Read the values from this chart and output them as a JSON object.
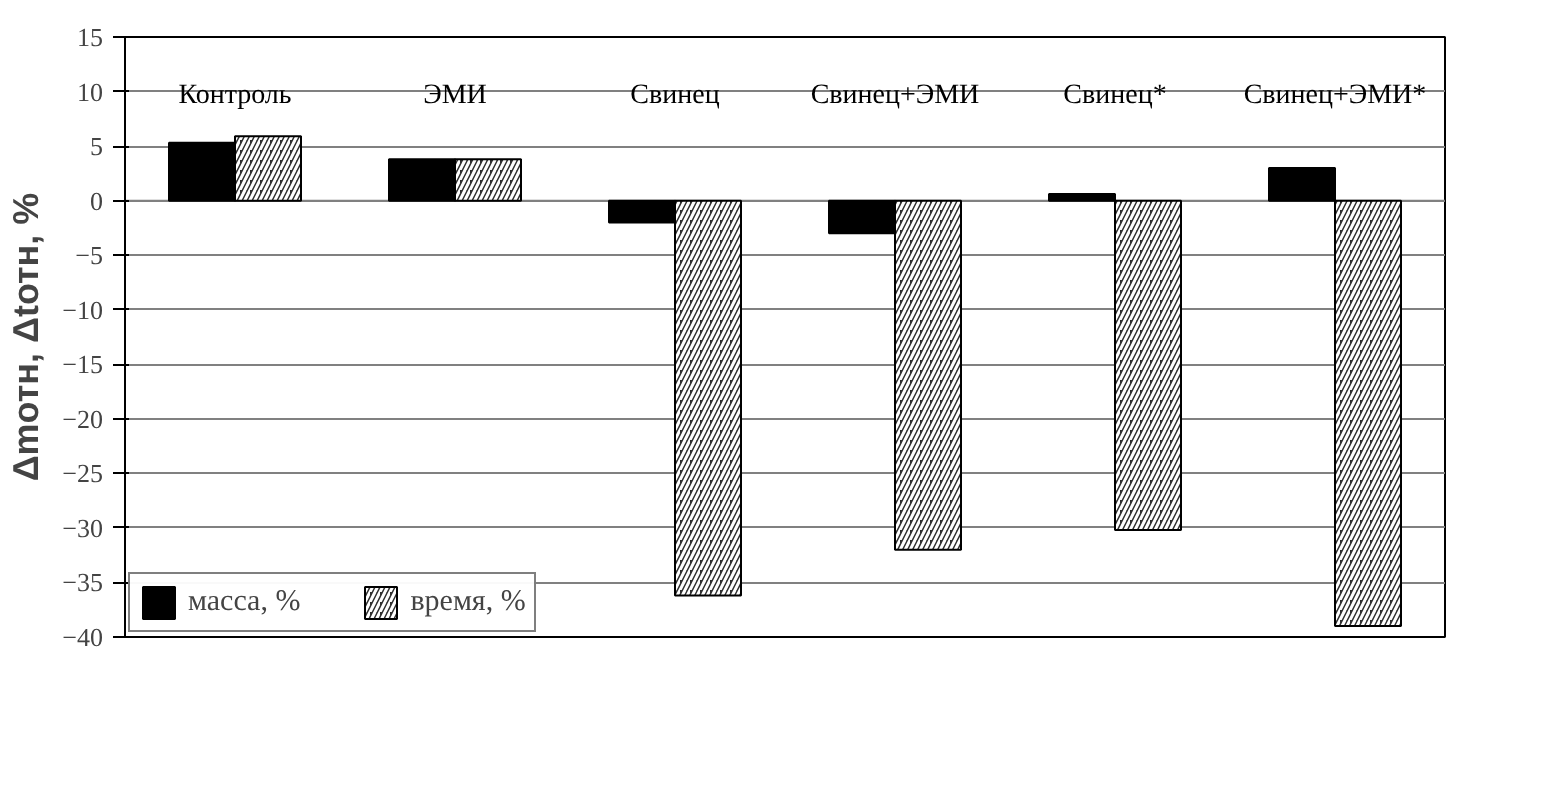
{
  "chart_data": {
    "type": "bar",
    "ylabel": "Δmотн, Δtотн, %",
    "categories": [
      "Контроль",
      "ЭМИ",
      "Свинец",
      "Свинец+ЭМИ",
      "Свинец*",
      "Свинец+ЭМИ*"
    ],
    "series": [
      {
        "name": "масса, %",
        "color": "#000000",
        "values": [
          5.3,
          3.8,
          -2.0,
          -3.0,
          0.6,
          3.0
        ]
      },
      {
        "name": "время, %",
        "color": "#303030",
        "values": [
          5.9,
          3.8,
          -36.2,
          -32.0,
          -30.2,
          -39.0
        ]
      }
    ],
    "ylim": [
      -40,
      15
    ],
    "yticks": [
      -40,
      -35,
      -30,
      -25,
      -20,
      -15,
      -10,
      -5,
      0,
      5,
      10,
      15
    ],
    "grid": "y",
    "legend": "bottom left"
  }
}
